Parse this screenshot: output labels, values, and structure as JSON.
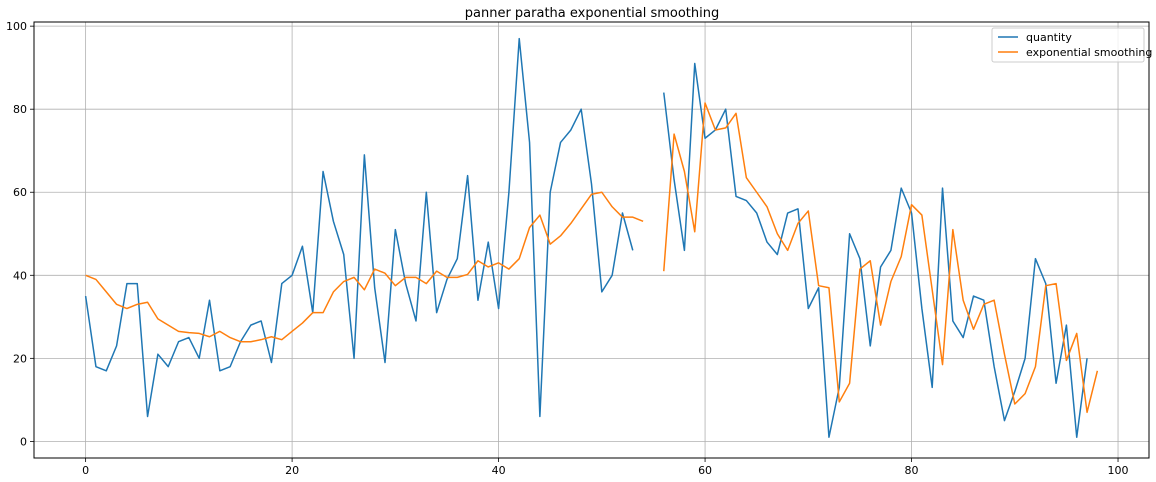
{
  "chart_data": {
    "type": "line",
    "title": "panner paratha exponential smoothing",
    "xlabel": "",
    "ylabel": "",
    "xlim": [
      -5,
      103
    ],
    "ylim": [
      -4,
      101
    ],
    "xticks": [
      0,
      20,
      40,
      60,
      80,
      100
    ],
    "yticks": [
      0,
      20,
      40,
      60,
      80,
      100
    ],
    "grid": true,
    "legend_position": "top-right",
    "series": [
      {
        "name": "quantity",
        "color": "#1f77b4",
        "x": [
          0,
          1,
          2,
          3,
          4,
          5,
          6,
          7,
          8,
          9,
          10,
          11,
          12,
          13,
          14,
          15,
          16,
          17,
          18,
          19,
          20,
          21,
          22,
          23,
          24,
          25,
          26,
          27,
          28,
          29,
          30,
          31,
          32,
          33,
          34,
          35,
          36,
          37,
          38,
          39,
          40,
          41,
          42,
          43,
          44,
          45,
          46,
          47,
          48,
          49,
          50,
          51,
          52,
          53,
          null,
          56,
          57,
          58,
          59,
          60,
          61,
          62,
          63,
          64,
          65,
          66,
          67,
          68,
          69,
          70,
          71,
          72,
          73,
          74,
          75,
          76,
          77,
          78,
          79,
          80,
          81,
          82,
          83,
          84,
          85,
          86,
          87,
          88,
          89,
          90,
          91,
          92,
          93,
          94,
          95,
          96,
          97
        ],
        "y": [
          35,
          18,
          17,
          23,
          38,
          38,
          6,
          21,
          18,
          24,
          25,
          20,
          34,
          17,
          18,
          24,
          28,
          29,
          19,
          38,
          40,
          47,
          31,
          65,
          53,
          45,
          20,
          69,
          37,
          19,
          51,
          38,
          29,
          60,
          31,
          39,
          44,
          64,
          34,
          48,
          32,
          60,
          97,
          72,
          6,
          60,
          72,
          75,
          80,
          62,
          36,
          40,
          55,
          46,
          null,
          84,
          63,
          46,
          91,
          73,
          75,
          80,
          59,
          58,
          55,
          48,
          45,
          55,
          56,
          32,
          37,
          1,
          13,
          50,
          44,
          23,
          42,
          46,
          61,
          55,
          32,
          13,
          61,
          29,
          25,
          35,
          34,
          18,
          5,
          12,
          20,
          44,
          38,
          14,
          28,
          1,
          20
        ]
      },
      {
        "name": "exponential smoothing",
        "color": "#ff7f0e",
        "x": [
          0,
          1,
          2,
          3,
          4,
          5,
          6,
          7,
          8,
          9,
          10,
          11,
          12,
          13,
          14,
          15,
          16,
          17,
          18,
          19,
          20,
          21,
          22,
          23,
          24,
          25,
          26,
          27,
          28,
          29,
          30,
          31,
          32,
          33,
          34,
          35,
          36,
          37,
          38,
          39,
          40,
          41,
          42,
          43,
          44,
          45,
          46,
          47,
          48,
          49,
          50,
          51,
          52,
          53,
          54,
          null,
          56,
          57,
          58,
          59,
          60,
          61,
          62,
          63,
          64,
          65,
          66,
          67,
          68,
          69,
          70,
          71,
          72,
          73,
          74,
          75,
          76,
          77,
          78,
          79,
          80,
          81,
          82,
          83,
          84,
          85,
          86,
          87,
          88,
          89,
          90,
          91,
          92,
          93,
          94,
          95,
          96,
          97,
          98
        ],
        "y": [
          40,
          39,
          36,
          33,
          32,
          33,
          33.5,
          29.5,
          28,
          26.5,
          26.2,
          26,
          25.2,
          26.5,
          25,
          24,
          24,
          24.5,
          25.2,
          24.5,
          26.5,
          28.5,
          31,
          31,
          36,
          38.5,
          39.5,
          36.5,
          41.5,
          40.5,
          37.5,
          39.5,
          39.5,
          38,
          41,
          39.5,
          39.5,
          40.2,
          43.5,
          42,
          43,
          41.5,
          44,
          51.5,
          54.5,
          47.5,
          49.5,
          52.5,
          56,
          59.5,
          60,
          56.5,
          54,
          54,
          53,
          null,
          41,
          74,
          65,
          50.5,
          81.5,
          75,
          75.5,
          79,
          63.5,
          60,
          56.5,
          50,
          46,
          52.5,
          55.5,
          37.5,
          37,
          9.5,
          14,
          41.5,
          43.5,
          28,
          38.5,
          44.5,
          57,
          54.5,
          36.5,
          18.5,
          51,
          34,
          27,
          33,
          34,
          21,
          9,
          11.5,
          18,
          37.5,
          38,
          19.5,
          26,
          7,
          17
        ]
      }
    ]
  }
}
